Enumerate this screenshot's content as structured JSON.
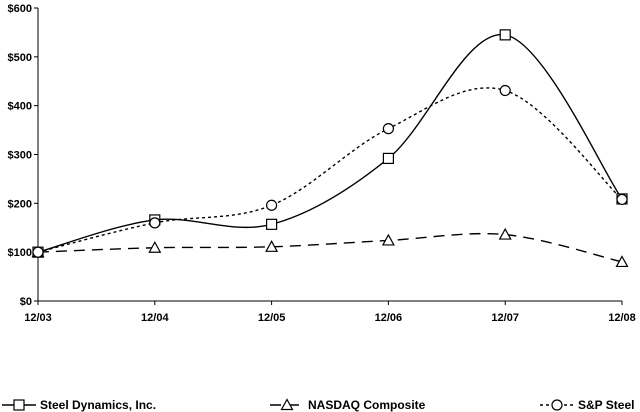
{
  "chart_data": {
    "type": "line",
    "title": "",
    "xlabel": "",
    "ylabel": "",
    "categories": [
      "12/03",
      "12/04",
      "12/05",
      "12/06",
      "12/07",
      "12/08"
    ],
    "ylim": [
      0,
      600
    ],
    "yticks": [
      0,
      100,
      200,
      300,
      400,
      500,
      600
    ],
    "ytick_labels": [
      "$0",
      "$100",
      "$200",
      "$300",
      "$400",
      "$500",
      "$600"
    ],
    "grid": false,
    "legend_position": "bottom",
    "series": [
      {
        "name": "Steel Dynamics, Inc.",
        "marker": "square",
        "line_style": "solid",
        "color": "#000000",
        "values": [
          100,
          166,
          157,
          292,
          545,
          209
        ]
      },
      {
        "name": "NASDAQ Composite",
        "marker": "triangle",
        "line_style": "dashed",
        "color": "#000000",
        "values": [
          100,
          109,
          111,
          124,
          136,
          80
        ]
      },
      {
        "name": "S&P Steel",
        "marker": "circle",
        "line_style": "dotted",
        "color": "#000000",
        "values": [
          100,
          160,
          196,
          353,
          431,
          208
        ]
      }
    ]
  }
}
